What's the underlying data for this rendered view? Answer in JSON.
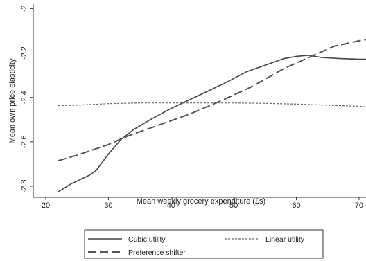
{
  "chart_data": {
    "type": "line",
    "title": "",
    "xlabel": "Mean weekly grocery expenditure (£s)",
    "ylabel": "Mean own price elasticity",
    "xlim": [
      18,
      72
    ],
    "ylim": [
      -2.85,
      -1.98
    ],
    "x_ticks": [
      {
        "value": 20,
        "label": "20"
      },
      {
        "value": 30,
        "label": "30"
      },
      {
        "value": 40,
        "label": "40"
      },
      {
        "value": 50,
        "label": "50"
      },
      {
        "value": 60,
        "label": "60"
      },
      {
        "value": 70,
        "label": "70"
      }
    ],
    "y_ticks": [
      {
        "value": -2.8,
        "label": "-2.8"
      },
      {
        "value": -2.6,
        "label": "-2.6"
      },
      {
        "value": -2.4,
        "label": "-2.4"
      },
      {
        "value": -2.2,
        "label": "-2.2"
      },
      {
        "value": -2.0,
        "label": "-2"
      }
    ],
    "grid": false,
    "legend_position": "bottom",
    "series": [
      {
        "name": "Cubic utility",
        "style": "solid",
        "points": [
          [
            22,
            -2.825
          ],
          [
            24,
            -2.79
          ],
          [
            27,
            -2.75
          ],
          [
            28,
            -2.73
          ],
          [
            30,
            -2.655
          ],
          [
            32,
            -2.59
          ],
          [
            34,
            -2.545
          ],
          [
            37,
            -2.495
          ],
          [
            40,
            -2.45
          ],
          [
            43,
            -2.41
          ],
          [
            46,
            -2.37
          ],
          [
            49,
            -2.33
          ],
          [
            52,
            -2.285
          ],
          [
            55,
            -2.255
          ],
          [
            58,
            -2.225
          ],
          [
            60,
            -2.215
          ],
          [
            62,
            -2.21
          ],
          [
            64,
            -2.22
          ],
          [
            67,
            -2.225
          ],
          [
            70,
            -2.228
          ],
          [
            72,
            -2.228
          ]
        ]
      },
      {
        "name": "Linear utility",
        "style": "short-dash",
        "points": [
          [
            22,
            -2.437
          ],
          [
            25,
            -2.435
          ],
          [
            30,
            -2.428
          ],
          [
            35,
            -2.425
          ],
          [
            40,
            -2.425
          ],
          [
            45,
            -2.425
          ],
          [
            50,
            -2.425
          ],
          [
            55,
            -2.427
          ],
          [
            60,
            -2.43
          ],
          [
            65,
            -2.435
          ],
          [
            70,
            -2.44
          ],
          [
            72,
            -2.445
          ]
        ]
      },
      {
        "name": "Preference shifter",
        "style": "long-dash",
        "points": [
          [
            22,
            -2.685
          ],
          [
            25,
            -2.66
          ],
          [
            30,
            -2.612
          ],
          [
            33,
            -2.575
          ],
          [
            38,
            -2.525
          ],
          [
            43,
            -2.475
          ],
          [
            48,
            -2.415
          ],
          [
            53,
            -2.35
          ],
          [
            58,
            -2.27
          ],
          [
            62,
            -2.22
          ],
          [
            66,
            -2.17
          ],
          [
            70,
            -2.145
          ],
          [
            72,
            -2.135
          ]
        ]
      }
    ]
  }
}
